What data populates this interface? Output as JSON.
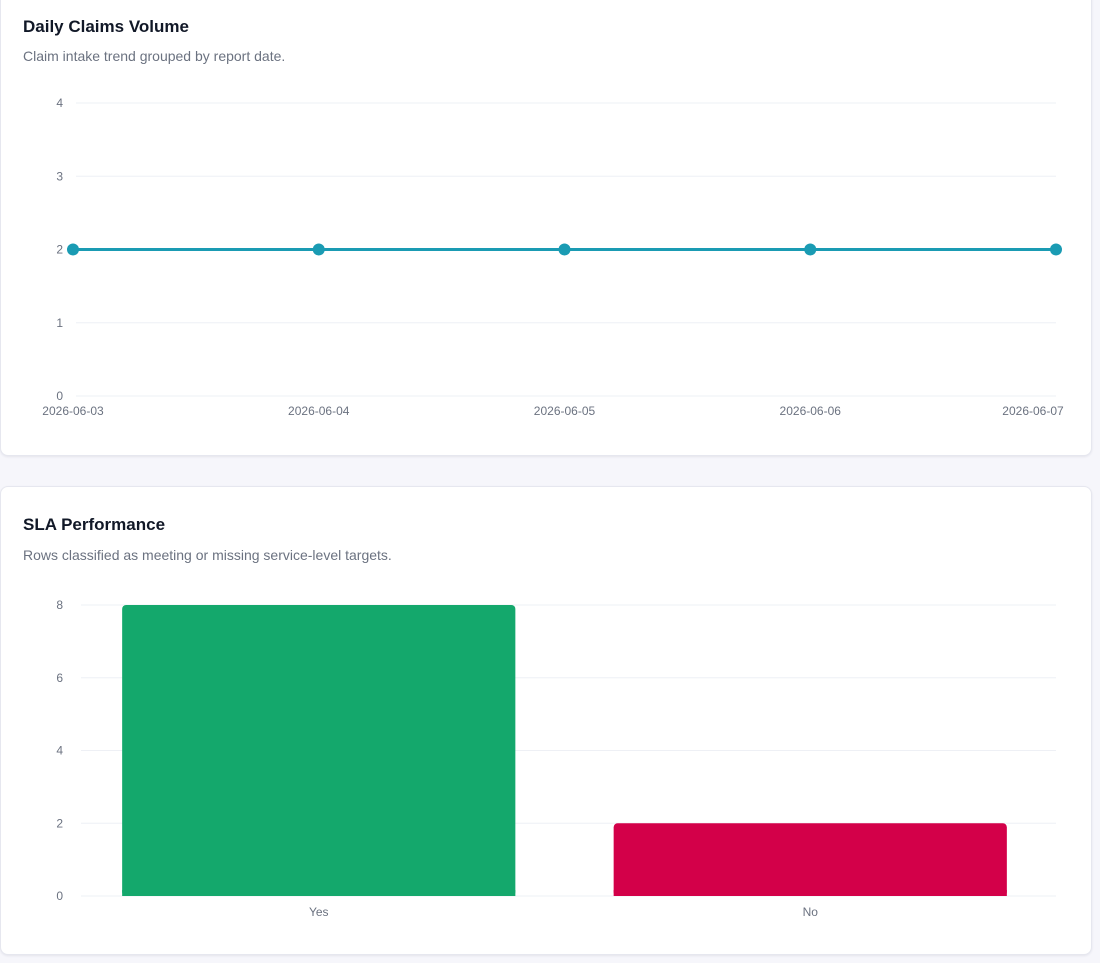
{
  "cards": [
    {
      "title": "Daily Claims Volume",
      "subtitle": "Claim intake trend grouped by report date."
    },
    {
      "title": "SLA Performance",
      "subtitle": "Rows classified as meeting or missing service-level targets."
    }
  ],
  "chart_data": [
    {
      "type": "line",
      "title": "Daily Claims Volume",
      "subtitle": "Claim intake trend grouped by report date.",
      "x": [
        "2026-06-03",
        "2026-06-04",
        "2026-06-05",
        "2026-06-06",
        "2026-06-07"
      ],
      "series": [
        {
          "values": [
            2,
            2,
            2,
            2,
            2
          ],
          "color": "#1a9bb3"
        }
      ],
      "ylim": [
        0,
        4
      ],
      "yticks": [
        0,
        1,
        2,
        3,
        4
      ],
      "grid": true,
      "xlabel": "",
      "ylabel": ""
    },
    {
      "type": "bar",
      "title": "SLA Performance",
      "subtitle": "Rows classified as meeting or missing service-level targets.",
      "categories": [
        "Yes",
        "No"
      ],
      "values": [
        8,
        2
      ],
      "colors": [
        "#14a86c",
        "#d30049"
      ],
      "ylim": [
        0,
        8
      ],
      "yticks": [
        0,
        2,
        4,
        6,
        8
      ],
      "grid": true,
      "xlabel": "",
      "ylabel": ""
    }
  ]
}
